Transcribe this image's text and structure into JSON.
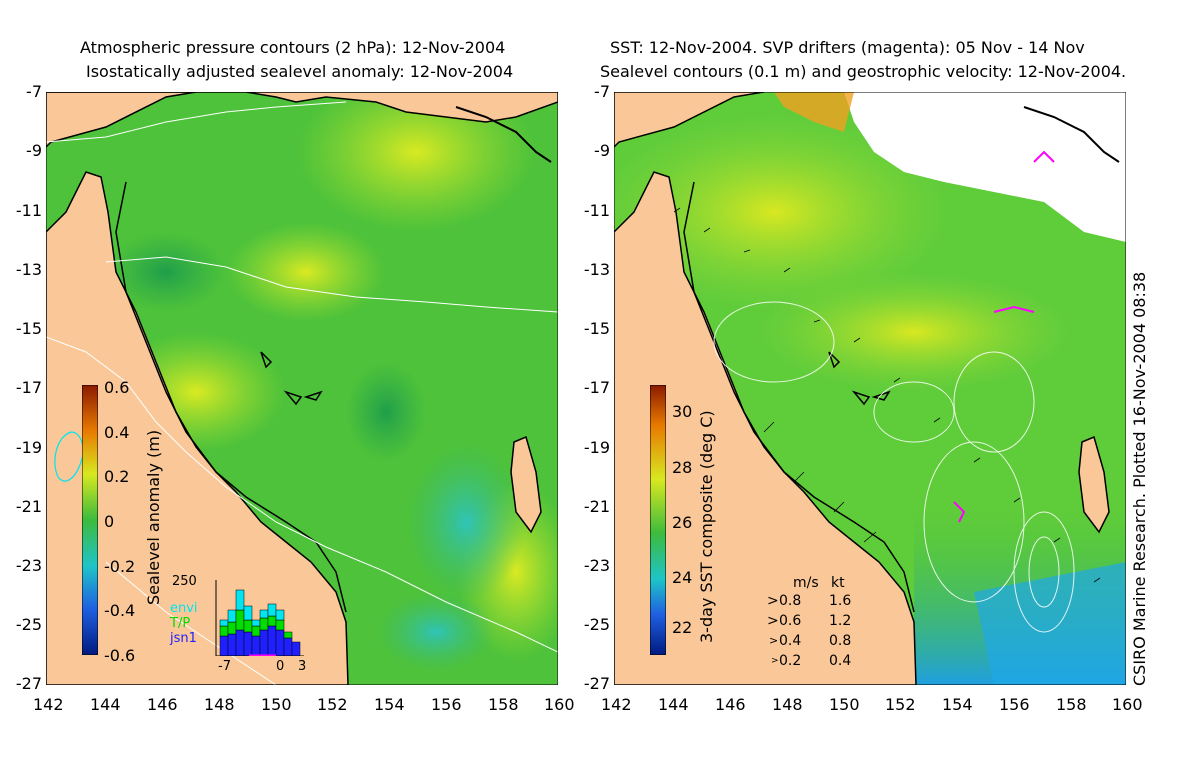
{
  "left_panel": {
    "title_line1": "Atmospheric pressure contours (2 hPa): 12-Nov-2004",
    "title_line2": "Isostatically adjusted sealevel anomaly: 12-Nov-2004",
    "colorbar_label": "Sealevel anomaly (m)",
    "colorbar_ticks": [
      "0.6",
      "0.4",
      "0.2",
      "0",
      "-0.2",
      "-0.4",
      "-0.6"
    ],
    "inset": {
      "ymax_label": "250",
      "x_ticks": [
        "-7",
        "0",
        "3"
      ],
      "legend": [
        {
          "name": "envi",
          "color": "#00e5ee"
        },
        {
          "name": "T/P",
          "color": "#00dd00"
        },
        {
          "name": "jsn1",
          "color": "#2020ff"
        }
      ]
    }
  },
  "right_panel": {
    "title_line1": "SST: 12-Nov-2004. SVP drifters (magenta): 05 Nov - 14 Nov",
    "title_line2": "Sealevel contours (0.1 m) and geostrophic velocity: 12-Nov-2004.",
    "colorbar_label": "3-day SST composite (deg C)",
    "colorbar_ticks": [
      "30",
      "28",
      "26",
      "24",
      "22"
    ],
    "velocity_key": {
      "header_ms": "m/s",
      "header_kt": "kt",
      "rows": [
        {
          "ms": "0.8",
          "kt": "1.6"
        },
        {
          "ms": "0.6",
          "kt": "1.2"
        },
        {
          "ms": "0.4",
          "kt": "0.8"
        },
        {
          "ms": "0.2",
          "kt": "0.4"
        }
      ]
    }
  },
  "axes": {
    "y_ticks": [
      "-7",
      "-9",
      "-11",
      "-13",
      "-15",
      "-17",
      "-19",
      "-21",
      "-23",
      "-25",
      "-27"
    ],
    "x_ticks": [
      "142",
      "144",
      "146",
      "148",
      "150",
      "152",
      "154",
      "156",
      "158",
      "160"
    ]
  },
  "side_note": "CSIRO Marine Research. Plotted 16-Nov-2004 08:38",
  "colors": {
    "land": "#fac898",
    "ocean_green": "#3dbb3d",
    "ocean_light": "#7fd63a",
    "ocean_yellow": "#d8e820",
    "ocean_cyan": "#3fc8a8",
    "sst_blue": "#2aa8e0"
  }
}
